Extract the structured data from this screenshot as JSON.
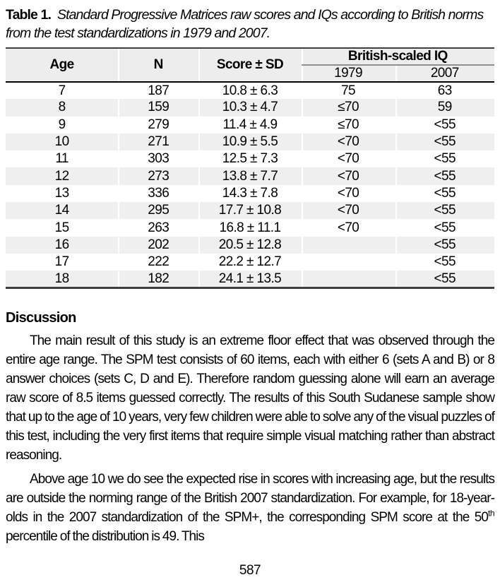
{
  "table": {
    "caption_label": "Table 1.",
    "caption_text": "Standard Progressive Matrices raw scores and IQs according to British norms from the test standardizations in 1979 and 2007.",
    "columns": {
      "age": "Age",
      "n": "N",
      "score": "Score ± SD",
      "iq_group": "British-scaled IQ",
      "iq_1979": "1979",
      "iq_2007": "2007"
    },
    "rows": [
      {
        "age": "7",
        "n": "187",
        "score": "10.8 ± 6.3",
        "iq1979": "75",
        "iq2007": "63"
      },
      {
        "age": "8",
        "n": "159",
        "score": "10.3 ± 4.7",
        "iq1979": "≤70",
        "iq2007": "59"
      },
      {
        "age": "9",
        "n": "279",
        "score": "11.4 ± 4.9",
        "iq1979": "≤70",
        "iq2007": "<55"
      },
      {
        "age": "10",
        "n": "271",
        "score": "10.9 ± 5.5",
        "iq1979": "<70",
        "iq2007": "<55"
      },
      {
        "age": "11",
        "n": "303",
        "score": "12.5 ± 7.3",
        "iq1979": "<70",
        "iq2007": "<55"
      },
      {
        "age": "12",
        "n": "273",
        "score": "13.8 ± 7.7",
        "iq1979": "<70",
        "iq2007": "<55"
      },
      {
        "age": "13",
        "n": "336",
        "score": "14.3 ± 7.8",
        "iq1979": "<70",
        "iq2007": "<55"
      },
      {
        "age": "14",
        "n": "295",
        "score": "17.7 ± 10.8",
        "iq1979": "<70",
        "iq2007": "<55"
      },
      {
        "age": "15",
        "n": "263",
        "score": "16.8 ± 11.1",
        "iq1979": "<70",
        "iq2007": "<55"
      },
      {
        "age": "16",
        "n": "202",
        "score": "20.5 ± 12.8",
        "iq1979": "",
        "iq2007": "<55"
      },
      {
        "age": "17",
        "n": "222",
        "score": "22.2 ± 12.7",
        "iq1979": "",
        "iq2007": "<55"
      },
      {
        "age": "18",
        "n": "182",
        "score": "24.1 ± 13.5",
        "iq1979": "",
        "iq2007": "<55"
      }
    ]
  },
  "discussion": {
    "heading": "Discussion",
    "para1": "The main result of this study is an extreme floor effect that was observed through the entire age range. The SPM test consists of 60 items, each with either 6 (sets A and B) or 8 answer choices (sets C, D and E). Therefore random guessing alone will earn an average raw score of 8.5 items guessed correctly. The results of this South Sudanese sample show that up to the age of 10 years, very few children were able to solve any of the visual puzzles of this test, including the very first items that require simple visual matching rather than abstract reasoning.",
    "para2_before_sup": "Above age 10 we do see the expected rise in scores with increasing age, but the results are outside the norming range of the British 2007 standardization. For example, for 18-year-olds in the 2007 standardization of the SPM+, the corresponding SPM score at the 50",
    "para2_sup": "th",
    "para2_after_sup": " percentile of the distribution is 49. This"
  },
  "page_number": "587",
  "colors": {
    "row_shade": "#efefef",
    "header_shade": "#ededed",
    "iq_rule_gray": "#8f8f8f",
    "table_border": "#3f3f3f"
  }
}
